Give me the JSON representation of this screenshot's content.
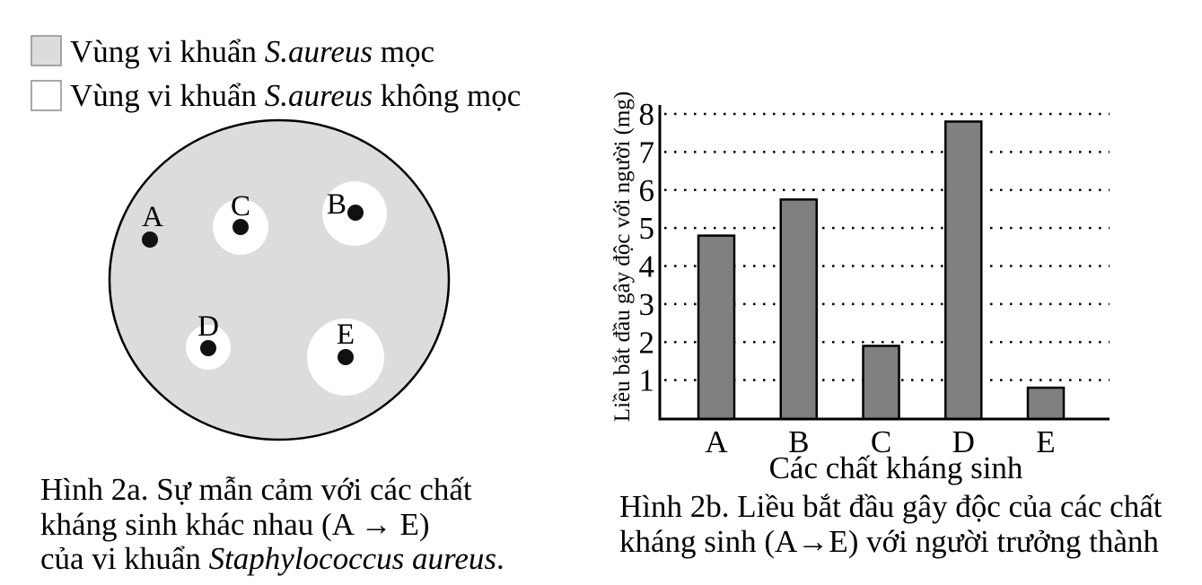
{
  "legend": {
    "items": [
      {
        "prefix": "Vùng vi khuẩn ",
        "italic": "S.aureus",
        "suffix": " mọc",
        "swatch_color": "#dcdcdc"
      },
      {
        "prefix": "Vùng vi khuẩn ",
        "italic": "S.aureus",
        "suffix": " không mọc",
        "swatch_color": "#ffffff"
      }
    ]
  },
  "figure_2a": {
    "dish_color": "#dcdcdc",
    "zone_color": "#ffffff",
    "spot_labels": [
      "A",
      "B",
      "C",
      "D",
      "E"
    ],
    "caption": {
      "line1": "Hình 2a. Sự mẫn cảm với các chất",
      "line2": "kháng sinh khác nhau (A → E)",
      "line3_prefix": "của vi khuẩn ",
      "line3_italic": "Staphylococcus aureus",
      "line3_suffix": "."
    }
  },
  "figure_2b": {
    "caption": {
      "line1": "Hình 2b. Liều bắt đầu gây độc của các chất",
      "line2": "kháng sinh (A→E) với người trưởng thành"
    }
  },
  "chart_data": {
    "type": "bar",
    "categories": [
      "A",
      "B",
      "C",
      "D",
      "E"
    ],
    "values": [
      4.8,
      5.75,
      1.9,
      7.8,
      0.8
    ],
    "xlabel": "Các chất kháng sinh",
    "ylabel": "Liều bắt đầu gây độc với người (mg)",
    "ylim": [
      0,
      8
    ],
    "yticks": [
      1,
      2,
      3,
      4,
      5,
      6,
      7,
      8
    ],
    "grid": true,
    "bar_color": "#808080"
  }
}
